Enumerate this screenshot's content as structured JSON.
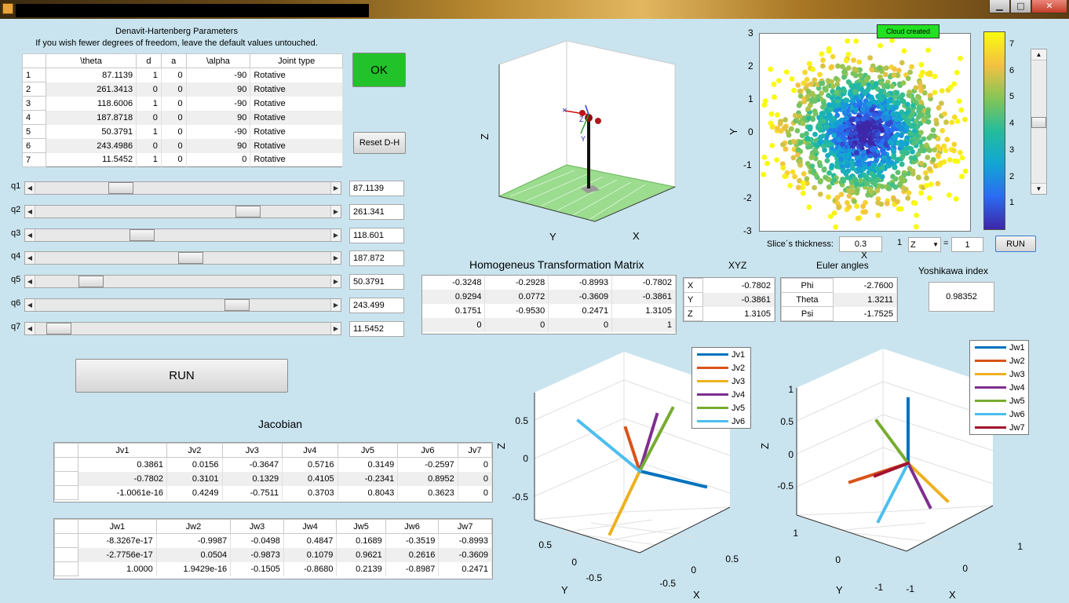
{
  "window": {
    "min_glyph": "▁",
    "max_glyph": "□",
    "close_glyph": "✕"
  },
  "dh": {
    "title": "Denavit-Hartenberg Parameters",
    "subtitle": "If you wish fewer degrees of freedom, leave the default values untouched.",
    "columns": [
      "\\theta",
      "d",
      "a",
      "\\alpha",
      "Joint type"
    ],
    "rows": [
      [
        "1",
        "87.1139",
        "1",
        "0",
        "-90",
        "Rotative"
      ],
      [
        "2",
        "261.3413",
        "0",
        "0",
        "90",
        "Rotative"
      ],
      [
        "3",
        "118.6006",
        "1",
        "0",
        "-90",
        "Rotative"
      ],
      [
        "4",
        "187.8718",
        "0",
        "0",
        "90",
        "Rotative"
      ],
      [
        "5",
        "50.3791",
        "1",
        "0",
        "-90",
        "Rotative"
      ],
      [
        "6",
        "243.4986",
        "0",
        "0",
        "90",
        "Rotative"
      ],
      [
        "7",
        "11.5452",
        "1",
        "0",
        "0",
        "Rotative"
      ]
    ],
    "ok_label": "OK",
    "reset_label": "Reset D-H"
  },
  "sliders": [
    {
      "label": "q1",
      "value": "87.1139",
      "fraction": 0.27
    },
    {
      "label": "q2",
      "value": "261.341",
      "fraction": 0.74
    },
    {
      "label": "q3",
      "value": "118.601",
      "fraction": 0.35
    },
    {
      "label": "q4",
      "value": "187.872",
      "fraction": 0.53
    },
    {
      "label": "q5",
      "value": "50.3791",
      "fraction": 0.16
    },
    {
      "label": "q6",
      "value": "243.499",
      "fraction": 0.7
    },
    {
      "label": "q7",
      "value": "11.5452",
      "fraction": 0.04
    }
  ],
  "run_label": "RUN",
  "robot_plot": {
    "z_label": "Z",
    "y_label": "Y",
    "x_label": "X"
  },
  "cloud": {
    "badge": "Cloud created",
    "yticks": [
      "3",
      "2",
      "1",
      "0",
      "-1",
      "-2",
      "-3"
    ],
    "y_label": "Y",
    "x_label": "X",
    "colorbar_ticks": [
      "7",
      "6",
      "5",
      "4",
      "3",
      "2",
      "1"
    ],
    "colorbar_max": 7.5
  },
  "slice": {
    "label": "Slice´s thickness:",
    "value": "0.3",
    "one_left": "1",
    "axis_select": "Z",
    "equals": "=",
    "axis_value": "1",
    "run_label": "RUN"
  },
  "htm": {
    "title": "Homogeneus Transformation Matrix",
    "rows": [
      [
        "-0.3248",
        "-0.2928",
        "-0.8993",
        "-0.7802"
      ],
      [
        "0.9294",
        "0.0772",
        "-0.3609",
        "-0.3861"
      ],
      [
        "0.1751",
        "-0.9530",
        "0.2471",
        "1.3105"
      ],
      [
        "0",
        "0",
        "0",
        "1"
      ]
    ]
  },
  "xyz": {
    "title": "XYZ",
    "rows": [
      [
        "X",
        "-0.7802"
      ],
      [
        "Y",
        "-0.3861"
      ],
      [
        "Z",
        "1.3105"
      ]
    ]
  },
  "euler": {
    "title": "Euler angles",
    "rows": [
      [
        "Phi",
        "-2.7600"
      ],
      [
        "Theta",
        "1.3211"
      ],
      [
        "Psi",
        "-1.7525"
      ]
    ]
  },
  "yoshikawa": {
    "title": "Yoshikawa index",
    "value": "0.98352"
  },
  "jacobian": {
    "title": "Jacobian",
    "jv_columns": [
      "Jv1",
      "Jv2",
      "Jv3",
      "Jv4",
      "Jv5",
      "Jv6",
      "Jv7"
    ],
    "jv_rows": [
      [
        "0.3861",
        "0.0156",
        "-0.3647",
        "0.5716",
        "0.3149",
        "-0.2597",
        "0"
      ],
      [
        "-0.7802",
        "0.3101",
        "0.1329",
        "0.4105",
        "-0.2341",
        "0.8952",
        "0"
      ],
      [
        "-1.0061e-16",
        "0.4249",
        "-0.7511",
        "0.3703",
        "0.8043",
        "0.3623",
        "0"
      ]
    ],
    "jw_columns": [
      "Jw1",
      "Jw2",
      "Jw3",
      "Jw4",
      "Jw5",
      "Jw6",
      "Jw7"
    ],
    "jw_rows": [
      [
        "-8.3267e-17",
        "-0.9987",
        "-0.0498",
        "0.4847",
        "0.1689",
        "-0.3519",
        "-0.8993"
      ],
      [
        "-2.7756e-17",
        "0.0504",
        "-0.9873",
        "0.1079",
        "0.9621",
        "0.2616",
        "-0.3609"
      ],
      [
        "1.0000",
        "1.9429e-16",
        "-0.1505",
        "-0.8680",
        "0.2139",
        "-0.8987",
        "0.2471"
      ]
    ]
  },
  "jv_plot": {
    "legend": [
      "Jv1",
      "Jv2",
      "Jv3",
      "Jv4",
      "Jv5",
      "Jv6"
    ],
    "z_ticks": [
      "0.5",
      "0",
      "-0.5"
    ],
    "y_ticks": [
      "0.5",
      "0",
      "-0.5"
    ],
    "x_ticks": [
      "0.5",
      "0",
      "-0.5"
    ],
    "z_label": "Z",
    "y_label": "Y",
    "x_label": "X"
  },
  "jw_plot": {
    "legend": [
      "Jw1",
      "Jw2",
      "Jw3",
      "Jw4",
      "Jw5",
      "Jw6",
      "Jw7"
    ],
    "z_ticks": [
      "1",
      "0.5",
      "0",
      "-0.5"
    ],
    "y_ticks": [
      "1",
      "0",
      "-1"
    ],
    "x_ticks": [
      "1",
      "0",
      "-1"
    ],
    "z_label": "Z",
    "y_label": "Y",
    "x_label": "X"
  },
  "colors": {
    "c1": "#0072bd",
    "c2": "#d95319",
    "c3": "#edb120",
    "c4": "#7e2f8e",
    "c5": "#77ac30",
    "c6": "#4dbeee",
    "c7": "#a2142f",
    "ok_green": "#22c22a",
    "badge_green": "#22e022"
  }
}
